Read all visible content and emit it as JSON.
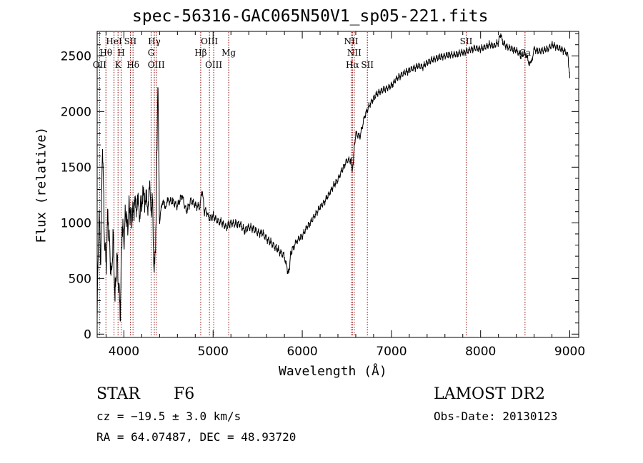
{
  "chart_data": {
    "type": "line",
    "title": "spec-56316-GAC065N50V1_sp05-221.fits",
    "xlabel": "Wavelength (Å)",
    "ylabel": "Flux (relative)",
    "xlim": [
      3700,
      9100
    ],
    "ylim": [
      -30,
      2720
    ],
    "x_ticks": [
      4000,
      5000,
      6000,
      7000,
      8000,
      9000
    ],
    "y_ticks": [
      0,
      500,
      1000,
      1500,
      2000,
      2500
    ],
    "x_tick_labels": [
      "4000",
      "5000",
      "6000",
      "7000",
      "8000",
      "9000"
    ],
    "y_tick_labels": [
      "0",
      "500",
      "1000",
      "1500",
      "2000",
      "2500"
    ],
    "grid": false,
    "line_color": "#000000",
    "marker_color": "#8b0000",
    "series": [
      {
        "x": [
          3700,
          3720,
          3740,
          3760,
          3780,
          3800,
          3820,
          3840,
          3860,
          3880,
          3900,
          3920,
          3940,
          3960,
          3980,
          4000,
          4020,
          4040,
          4060,
          4080,
          4100,
          4120,
          4150,
          4180,
          4200,
          4230,
          4260,
          4290,
          4300,
          4320,
          4340,
          4360,
          4380,
          4400,
          4430,
          4460,
          4500,
          4550,
          4600,
          4650,
          4700,
          4750,
          4800,
          4850,
          4880,
          4900,
          4920,
          4950,
          5000,
          5050,
          5100,
          5150,
          5200,
          5250,
          5300,
          5350,
          5400,
          5450,
          5500,
          5550,
          5600,
          5650,
          5700,
          5750,
          5800,
          5830,
          5850,
          5870,
          5890,
          5920,
          5950,
          6000,
          6050,
          6100,
          6150,
          6200,
          6250,
          6300,
          6350,
          6400,
          6450,
          6500,
          6550,
          6560,
          6580,
          6600,
          6650,
          6700,
          6750,
          6800,
          6850,
          6900,
          6950,
          7000,
          7050,
          7100,
          7150,
          7200,
          7250,
          7300,
          7350,
          7400,
          7450,
          7500,
          7550,
          7600,
          7650,
          7700,
          7750,
          7800,
          7850,
          7900,
          7950,
          8000,
          8050,
          8100,
          8150,
          8200,
          8220,
          8250,
          8300,
          8350,
          8400,
          8450,
          8500,
          8530,
          8560,
          8600,
          8650,
          8700,
          8750,
          8800,
          8850,
          8900,
          8950,
          8980,
          9000
        ],
        "y": [
          200,
          1100,
          650,
          1750,
          900,
          600,
          1100,
          780,
          500,
          900,
          300,
          700,
          450,
          200,
          980,
          850,
          1100,
          950,
          1150,
          1050,
          1100,
          1150,
          1180,
          1100,
          1200,
          1250,
          1150,
          1280,
          1100,
          1200,
          500,
          1000,
          2300,
          1000,
          1200,
          1150,
          1200,
          1190,
          1150,
          1250,
          1100,
          1200,
          1160,
          1140,
          1300,
          1100,
          1120,
          1040,
          1060,
          1020,
          1000,
          960,
          1000,
          990,
          990,
          930,
          960,
          950,
          910,
          910,
          860,
          820,
          780,
          740,
          700,
          580,
          550,
          720,
          760,
          810,
          850,
          880,
          960,
          1010,
          1080,
          1140,
          1190,
          1260,
          1330,
          1390,
          1480,
          1560,
          1560,
          1440,
          1650,
          1800,
          1780,
          1960,
          2050,
          2120,
          2170,
          2190,
          2210,
          2230,
          2290,
          2320,
          2350,
          2370,
          2390,
          2410,
          2400,
          2440,
          2460,
          2480,
          2490,
          2500,
          2510,
          2510,
          2520,
          2530,
          2540,
          2560,
          2570,
          2560,
          2580,
          2600,
          2590,
          2620,
          2700,
          2620,
          2580,
          2560,
          2550,
          2500,
          2530,
          2460,
          2420,
          2560,
          2540,
          2550,
          2560,
          2600,
          2580,
          2560,
          2540,
          2500,
          2300
        ]
      }
    ],
    "line_markers": [
      {
        "label": "OII",
        "x": 3727,
        "row": 3
      },
      {
        "label": "Hθ",
        "x": 3798,
        "row": 2
      },
      {
        "label": "HeI",
        "x": 3889,
        "row": 1
      },
      {
        "label": "K",
        "x": 3934,
        "row": 3
      },
      {
        "label": "H",
        "x": 3969,
        "row": 2
      },
      {
        "label": "SII",
        "x": 4072,
        "row": 1
      },
      {
        "label": "Hδ",
        "x": 4102,
        "row": 3
      },
      {
        "label": "Hγ",
        "x": 4341,
        "row": 1
      },
      {
        "label": "G",
        "x": 4305,
        "row": 2
      },
      {
        "label": "OIII",
        "x": 4363,
        "row": 3
      },
      {
        "label": "OIII",
        "x": 4959,
        "row": 1
      },
      {
        "label": "Hβ",
        "x": 4861,
        "row": 2
      },
      {
        "label": "OIII",
        "x": 5007,
        "row": 3
      },
      {
        "label": "Mg",
        "x": 5175,
        "row": 2
      },
      {
        "label": "NII",
        "x": 6548,
        "row": 1
      },
      {
        "label": "NII",
        "x": 6583,
        "row": 2
      },
      {
        "label": "Hα",
        "x": 6563,
        "row": 3
      },
      {
        "label": "SII",
        "x": 6730,
        "row": 3
      },
      {
        "label": "SII",
        "x": 7838,
        "row": 1
      },
      {
        "label": "Ca",
        "x": 8498,
        "row": 2
      }
    ]
  },
  "info": {
    "object_class": "STAR",
    "subclass": "F6",
    "survey": "LAMOST DR2",
    "velocity": "cz = −19.5 ± 3.0 km/s",
    "obs_date": "Obs-Date: 20130123",
    "coords": "RA =  64.07487, DEC =  48.93720"
  }
}
